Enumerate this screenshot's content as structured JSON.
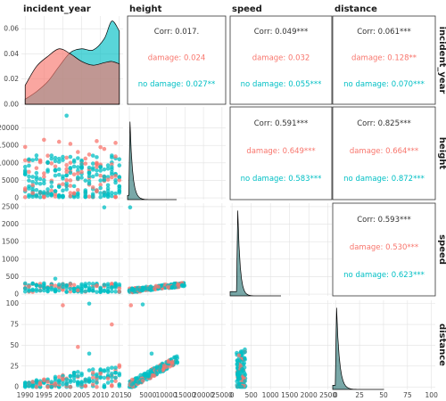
{
  "chart_data": {
    "type": "pairplot",
    "variables": [
      "incident_year",
      "height",
      "speed",
      "distance"
    ],
    "groups": [
      {
        "name": "damage",
        "color": "#F8766D"
      },
      {
        "name": "no damage",
        "color": "#00BFC4"
      }
    ],
    "corr_prefix": "Corr: ",
    "correlations": [
      {
        "row": 0,
        "col": 1,
        "overall": "0.017.",
        "groups": [
          "0.024",
          "0.027**"
        ]
      },
      {
        "row": 0,
        "col": 2,
        "overall": "0.049***",
        "groups": [
          "0.032",
          "0.055***"
        ]
      },
      {
        "row": 0,
        "col": 3,
        "overall": "0.061***",
        "groups": [
          "0.128**",
          "0.070***"
        ]
      },
      {
        "row": 1,
        "col": 2,
        "overall": "0.591***",
        "groups": [
          "0.649***",
          "0.583***"
        ]
      },
      {
        "row": 1,
        "col": 3,
        "overall": "0.825***",
        "groups": [
          "0.664***",
          "0.872***"
        ]
      },
      {
        "row": 2,
        "col": 3,
        "overall": "0.593***",
        "groups": [
          "0.530***",
          "0.623***"
        ]
      }
    ],
    "x_ticks": [
      [
        "1990",
        "1995",
        "2000",
        "2005",
        "2010",
        "2015"
      ],
      [
        "0",
        "5000",
        "10000",
        "15000",
        "20000",
        "25000"
      ],
      [
        "0",
        "500",
        "1000",
        "1500",
        "2000",
        "2500"
      ],
      [
        "0",
        "25",
        "50",
        "75",
        "100"
      ]
    ],
    "y_ticks": [
      [
        "0.00",
        "0.02",
        "0.04",
        "0.06"
      ],
      [
        "0",
        "5000",
        "10000",
        "15000",
        "20000"
      ],
      [
        "0",
        "500",
        "1000",
        "1500",
        "2000",
        "2500"
      ],
      [
        "0",
        "25",
        "50",
        "75",
        "100"
      ]
    ],
    "axis_ranges": {
      "incident_year": [
        1989,
        2016
      ],
      "height": [
        -500,
        26000
      ],
      "speed": [
        -50,
        2600
      ],
      "distance": [
        -3,
        104
      ]
    },
    "year_density_ylim": [
      0,
      0.07
    ],
    "year_density": {
      "x": [
        1990,
        1993,
        1996,
        1999,
        2002,
        2005,
        2008,
        2011,
        2013,
        2015
      ],
      "damage": [
        0.015,
        0.03,
        0.038,
        0.044,
        0.04,
        0.034,
        0.031,
        0.033,
        0.034,
        0.032
      ],
      "no damage": [
        0.004,
        0.01,
        0.018,
        0.03,
        0.041,
        0.044,
        0.043,
        0.052,
        0.066,
        0.058
      ]
    },
    "grid": true
  }
}
